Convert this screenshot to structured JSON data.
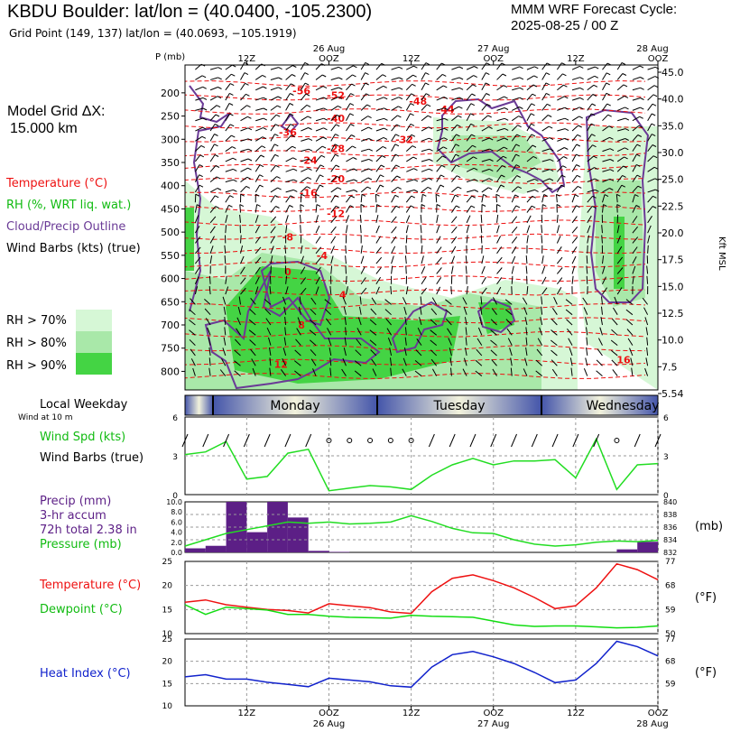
{
  "header": {
    "title": "KBDU Boulder:  lat/lon = (40.0400, -105.2300)",
    "subtitle": "Grid Point (149, 137) lat/lon = (40.0693, −105.1919)",
    "forecast_line1": "MMM WRF Forecast Cycle:",
    "forecast_line2": "2025-08-25 / 00  Z"
  },
  "grid": {
    "label_line1": "Model Grid ΔX:",
    "label_line2": "15.000 km"
  },
  "legend": {
    "temperature": "Temperature (°C)",
    "rh": "RH (%, WRT liq. wat.)",
    "cloud": "Cloud/Precip Outline",
    "wind": "Wind Barbs (kts) (true)",
    "rh70": "RH > 70%",
    "rh80": "RH > 80%",
    "rh90": "RH > 90%"
  },
  "colors": {
    "temperature": "#ee1111",
    "dewpoint": "#11dd11",
    "heat_index": "#1122cc",
    "precip": "#5c1f86",
    "cloud": "#6a3a96",
    "rh70": "#d6f7d6",
    "rh80": "#a9e8a9",
    "rh90": "#44d444",
    "wind_speed": "#22dd22"
  },
  "top_time_axis": {
    "labels": [
      "12Z",
      "OOZ",
      "12Z",
      "OOZ",
      "12Z",
      "OOZ"
    ],
    "dates": [
      "26 Aug",
      "27 Aug",
      "28 Aug"
    ]
  },
  "bottom_time_axis": {
    "labels": [
      "12Z",
      "OOZ",
      "12Z",
      "OOZ",
      "12Z",
      "OOZ"
    ],
    "dates": [
      "26 Aug",
      "27 Aug",
      "28 Aug"
    ]
  },
  "weekday_bar": {
    "label": "Local Weekday",
    "wind_note": "Wind at 10 m",
    "days": [
      "Monday",
      "Tuesday",
      "Wednesday"
    ]
  },
  "panels": {
    "wind": {
      "line1": "Wind Spd (kts)",
      "line2": "Wind Barbs (true)"
    },
    "precip": {
      "line1": "Precip (mm)",
      "line2": "3-hr accum",
      "line3": "72h total 2.38 in",
      "line4": "Pressure (mb)",
      "unit": "(mb)"
    },
    "temp": {
      "line1": "Temperature (°C)",
      "line2": "Dewpoint (°C)",
      "unit": "(°F)"
    },
    "heat": {
      "line1": "Heat Index (°C)",
      "unit": "(°F)"
    }
  },
  "chart_data": [
    {
      "type": "heatmap",
      "name": "time-height cross section",
      "yaxis_label": "P (mb)",
      "right_axis_label": "Kft MSL",
      "pressure_ticks": [
        200,
        250,
        300,
        350,
        400,
        450,
        500,
        550,
        600,
        650,
        700,
        750,
        800
      ],
      "height_ticks_kft": [
        "45.0",
        "40.0",
        "35.0",
        "30.0",
        "25.0",
        "22.5",
        "20.0",
        "17.5",
        "15.0",
        "12.5",
        "10.0",
        "7.5",
        "5.54"
      ],
      "ylim_mb": [
        140,
        840
      ],
      "xlim_hours": [
        3,
        72
      ],
      "isotherm_labels": [
        {
          "text": "-56",
          "hour": 20,
          "p": 195
        },
        {
          "text": "-52",
          "hour": 25,
          "p": 205
        },
        {
          "text": "-48",
          "hour": 37,
          "p": 218
        },
        {
          "text": "-44",
          "hour": 41,
          "p": 235
        },
        {
          "text": "-40",
          "hour": 25,
          "p": 255
        },
        {
          "text": "-36",
          "hour": 18,
          "p": 285
        },
        {
          "text": "-32",
          "hour": 35,
          "p": 300
        },
        {
          "text": "-28",
          "hour": 25,
          "p": 320
        },
        {
          "text": "-24",
          "hour": 21,
          "p": 345
        },
        {
          "text": "-20",
          "hour": 25,
          "p": 385
        },
        {
          "text": "-16",
          "hour": 21,
          "p": 415
        },
        {
          "text": "-12",
          "hour": 25,
          "p": 460
        },
        {
          "text": "-8",
          "hour": 18,
          "p": 510
        },
        {
          "text": "-4",
          "hour": 23,
          "p": 550
        },
        {
          "text": "0",
          "hour": 18,
          "p": 585
        },
        {
          "text": "4",
          "hour": 26,
          "p": 635
        },
        {
          "text": "8",
          "hour": 20,
          "p": 700
        },
        {
          "text": "12",
          "hour": 17,
          "p": 785
        },
        {
          "text": "16",
          "hour": 67,
          "p": 775
        }
      ]
    },
    {
      "type": "line",
      "name": "10 m wind speed",
      "xlim": [
        3,
        72
      ],
      "ylim": [
        0,
        6
      ],
      "yticks": [
        0,
        3,
        6
      ],
      "x": [
        3,
        6,
        9,
        12,
        15,
        18,
        21,
        24,
        27,
        30,
        33,
        36,
        39,
        42,
        45,
        48,
        51,
        54,
        57,
        60,
        63,
        66,
        69,
        72
      ],
      "values": [
        3.1,
        3.3,
        4.1,
        1.2,
        1.4,
        3.2,
        3.5,
        0.3,
        0.5,
        0.7,
        0.6,
        0.4,
        1.5,
        2.3,
        2.8,
        2.3,
        2.6,
        2.6,
        2.7,
        1.3,
        4.3,
        0.4,
        2.3,
        2.4
      ]
    },
    {
      "type": "bar",
      "name": "3-hr precipitation",
      "xlim": [
        3,
        72
      ],
      "ylim": [
        0,
        10
      ],
      "yticks": [
        "0.0",
        "2.0",
        "4.0",
        "6.0",
        "8.0",
        "10.0"
      ],
      "x": [
        4.5,
        7.5,
        10.5,
        13.5,
        16.5,
        19.5,
        22.5,
        25.5,
        67.5,
        70.5
      ],
      "values": [
        0.8,
        1.3,
        10.0,
        4.0,
        10.0,
        6.9,
        0.3,
        0.1,
        0.6,
        2.1
      ]
    },
    {
      "type": "line",
      "name": "surface pressure",
      "ylim": [
        832,
        840
      ],
      "yticks": [
        832,
        834,
        836,
        838,
        840
      ],
      "x": [
        3,
        6,
        9,
        12,
        15,
        18,
        21,
        24,
        27,
        30,
        33,
        36,
        39,
        42,
        45,
        48,
        51,
        54,
        57,
        60,
        63,
        66,
        69,
        72
      ],
      "values": [
        833.0,
        834.0,
        835.0,
        835.6,
        836.2,
        836.8,
        836.6,
        836.8,
        836.5,
        836.6,
        836.8,
        837.8,
        836.9,
        835.8,
        835.1,
        835.0,
        834.0,
        833.3,
        833.0,
        833.2,
        833.6,
        833.8,
        833.7,
        833.9
      ]
    },
    {
      "type": "line",
      "name": "temperature and dewpoint",
      "ylim": [
        10,
        25
      ],
      "yticks": [
        10,
        15,
        20,
        25
      ],
      "right_ticks_f": [
        50,
        59,
        68,
        77
      ],
      "x": [
        3,
        6,
        9,
        12,
        15,
        18,
        21,
        24,
        27,
        30,
        33,
        36,
        39,
        42,
        45,
        48,
        51,
        54,
        57,
        60,
        63,
        66,
        69,
        72
      ],
      "series": [
        {
          "name": "Temperature (°C)",
          "values": [
            16.5,
            17.0,
            16.0,
            15.5,
            15.0,
            14.8,
            14.3,
            16.2,
            15.8,
            15.4,
            14.5,
            14.2,
            18.7,
            21.5,
            22.2,
            21.0,
            19.5,
            17.5,
            15.2,
            15.8,
            19.5,
            24.5,
            23.3,
            21.2
          ]
        },
        {
          "name": "Dewpoint (°C)",
          "values": [
            16.0,
            14.0,
            15.5,
            15.2,
            14.9,
            14.0,
            14.0,
            13.6,
            13.4,
            13.3,
            13.2,
            13.8,
            13.6,
            13.5,
            13.4,
            12.6,
            11.8,
            11.5,
            11.6,
            11.6,
            11.4,
            11.2,
            11.3,
            11.6
          ]
        }
      ]
    },
    {
      "type": "line",
      "name": "heat index",
      "ylim": [
        10,
        25
      ],
      "yticks": [
        10,
        15,
        20,
        25
      ],
      "right_ticks_f": [
        59,
        68,
        77
      ],
      "x": [
        3,
        6,
        9,
        12,
        15,
        18,
        21,
        24,
        27,
        30,
        33,
        36,
        39,
        42,
        45,
        48,
        51,
        54,
        57,
        60,
        63,
        66,
        69,
        72
      ],
      "values": [
        16.5,
        17.0,
        16.0,
        16.0,
        15.3,
        14.8,
        14.3,
        16.2,
        15.8,
        15.4,
        14.5,
        14.2,
        18.7,
        21.5,
        22.2,
        21.0,
        19.5,
        17.5,
        15.2,
        15.8,
        19.5,
        24.5,
        23.3,
        21.2
      ]
    }
  ]
}
